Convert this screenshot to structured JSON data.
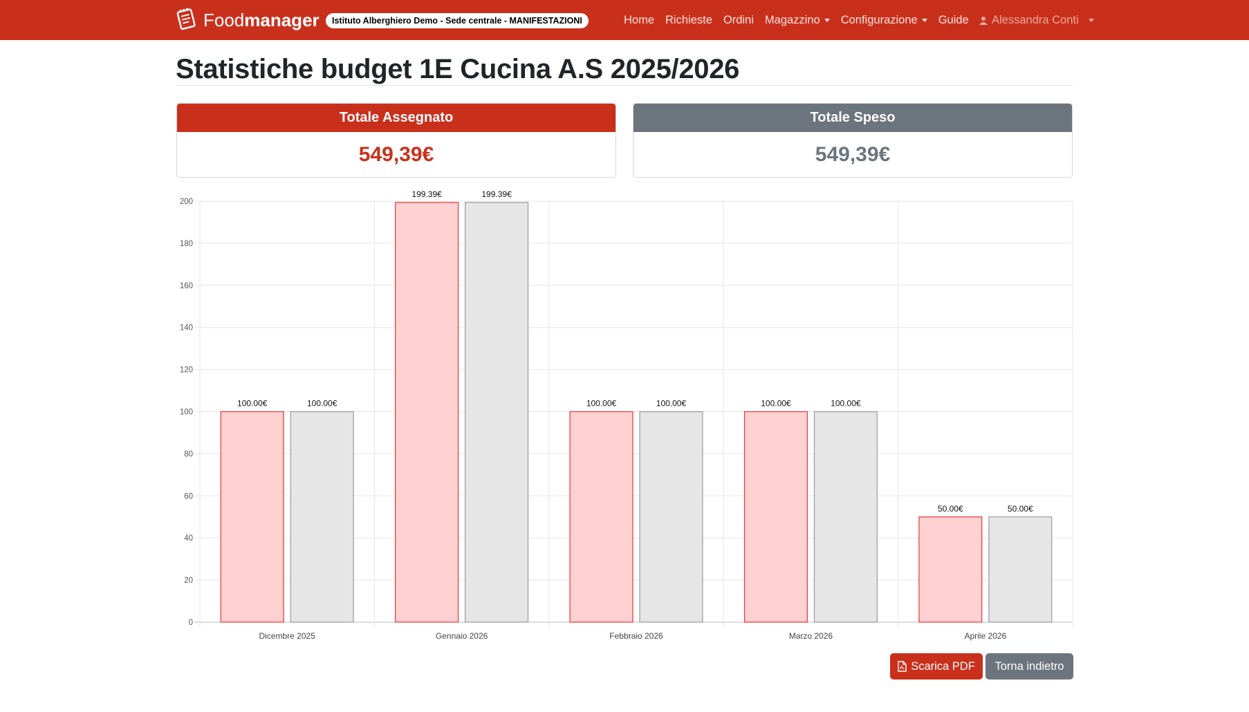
{
  "navbar": {
    "brand_light": "Food",
    "brand_bold": "manager",
    "organization": "Istituto Alberghiero Demo - Sede centrale - MANIFESTAZIONI",
    "links": [
      {
        "label": "Home"
      },
      {
        "label": "Richieste"
      },
      {
        "label": "Ordini"
      },
      {
        "label": "Magazzino",
        "dropdown": true
      },
      {
        "label": "Configurazione",
        "dropdown": true
      },
      {
        "label": "Guide"
      }
    ],
    "user": "Alessandra Conti"
  },
  "page": {
    "title": "Statistiche budget 1E Cucina A.S 2025/2026"
  },
  "cards": {
    "assigned": {
      "label": "Totale Assegnato",
      "value": "549,39€"
    },
    "spent": {
      "label": "Totale Speso",
      "value": "549,39€"
    }
  },
  "colors": {
    "brand": "#c9301c",
    "secondary": "#6c757d",
    "assigned_fill": "#ffd1d1",
    "assigned_border": "#e8333a",
    "spent_fill": "#e6e6e6",
    "spent_border": "#999999"
  },
  "chart_data": {
    "type": "bar",
    "categories": [
      "Dicembre 2025",
      "Gennaio 2026",
      "Febbraio 2026",
      "Marzo 2026",
      "Aprile 2026"
    ],
    "series": [
      {
        "values": [
          100,
          199.39,
          100,
          100,
          50
        ],
        "labels": [
          "100.00€",
          "199.39€",
          "100.00€",
          "100.00€",
          "50.00€"
        ]
      },
      {
        "values": [
          100,
          199.39,
          100,
          100,
          50
        ],
        "labels": [
          "100.00€",
          "199.39€",
          "100.00€",
          "100.00€",
          "50.00€"
        ]
      }
    ],
    "ylim": [
      0,
      200
    ],
    "yticks": [
      0,
      20,
      40,
      60,
      80,
      100,
      120,
      140,
      160,
      180,
      200
    ],
    "grid": true,
    "legend": "none"
  },
  "actions": {
    "pdf_label": "Scarica PDF",
    "back_label": "Torna indietro"
  },
  "icons": {
    "logo": "notepad-logo-icon",
    "user": "person-icon",
    "pdf": "file-pdf-icon"
  }
}
